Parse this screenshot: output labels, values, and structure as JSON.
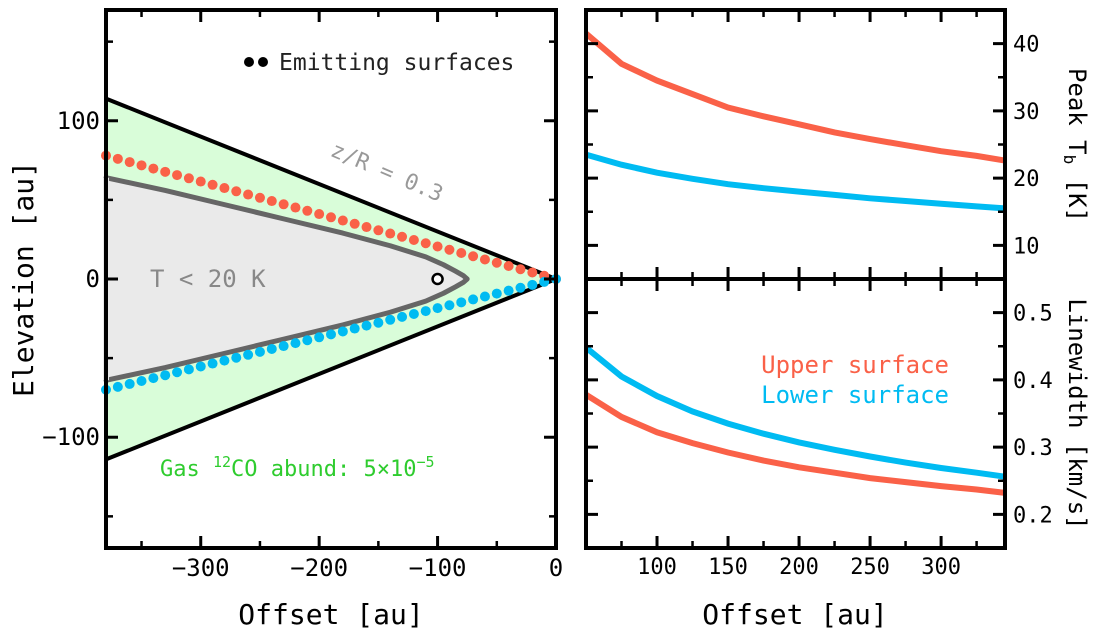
{
  "figure": {
    "left_panel": {
      "xlabel": "Offset [au]",
      "ylabel": "Elevation [au]",
      "legend_label": "Emitting surfaces",
      "zr_label": "z/R = 0.3",
      "temp_label": "T < 20 K",
      "abund_prefix": "Gas ",
      "abund_sup": "12",
      "abund_mid": "CO abund: 5×10",
      "abund_exp": "−5"
    },
    "right_top": {
      "ylabel_main": "Peak T",
      "ylabel_sub": "b",
      "ylabel_unit": " [K]"
    },
    "right_bottom": {
      "ylabel": "Linewidth [km/s]",
      "legend_upper": "Upper surface",
      "legend_lower": "Lower surface"
    },
    "right_xlabel": "Offset [au]"
  },
  "chart_data": [
    {
      "type": "scatter",
      "panel": "left",
      "title": "",
      "xlabel": "Offset [au]",
      "ylabel": "Elevation [au]",
      "xlim": [
        -380,
        0
      ],
      "ylim": [
        -170,
        170
      ],
      "xticks": [
        -300,
        -200,
        -100,
        0
      ],
      "xtick_labels": [
        "−300",
        "−200",
        "−100",
        "0"
      ],
      "yticks": [
        -100,
        0,
        100
      ],
      "ytick_labels": [
        "−100",
        "0",
        "100"
      ],
      "grid": false,
      "legend": {
        "placement": "top-right",
        "entries": [
          "Emitting surfaces"
        ]
      },
      "regions": [
        {
          "name": "gas CO (z/R = 0.3 wedge)",
          "color": "#d9fdd9",
          "edge_color": "#000000",
          "boundary_zr": 0.3
        },
        {
          "name": "T < 20 K",
          "color": "#eaeaea",
          "edge_color": "#666666",
          "tip_x": -75,
          "outer_upper_z": 64,
          "outer_lower_z": -64,
          "outer_x": -380
        }
      ],
      "series": [
        {
          "name": "upper",
          "color": "#fa6148",
          "x_range": [
            -380,
            0
          ],
          "z_at_-380": 78
        },
        {
          "name": "lower",
          "color": "#00bbf2",
          "x_range": [
            -380,
            0
          ],
          "z_at_-380": -70
        }
      ],
      "marker": {
        "x": -100,
        "y": 0,
        "style": "open-circle"
      },
      "annotations": [
        "z/R = 0.3",
        "T < 20 K",
        "Gas 12CO abund: 5×10−5"
      ]
    },
    {
      "type": "line",
      "panel": "right-top",
      "xlabel": "",
      "ylabel": "Peak Tb [K]",
      "xlim": [
        50,
        345
      ],
      "ylim": [
        5,
        45
      ],
      "yticks": [
        10,
        20,
        30,
        40
      ],
      "ytick_labels": [
        "10",
        "20",
        "30",
        "40"
      ],
      "series": [
        {
          "name": "Upper surface",
          "color": "#fa6148",
          "x": [
            50,
            75,
            100,
            125,
            150,
            175,
            200,
            225,
            250,
            275,
            300,
            325,
            345
          ],
          "y": [
            41.5,
            37.0,
            34.5,
            32.5,
            30.5,
            29.2,
            28.0,
            26.8,
            25.8,
            24.9,
            24.0,
            23.3,
            22.6
          ]
        },
        {
          "name": "Lower surface",
          "color": "#00bbf2",
          "x": [
            50,
            75,
            100,
            125,
            150,
            175,
            200,
            225,
            250,
            275,
            300,
            325,
            345
          ],
          "y": [
            23.5,
            22.0,
            20.8,
            19.9,
            19.1,
            18.5,
            18.0,
            17.5,
            17.0,
            16.6,
            16.2,
            15.8,
            15.5
          ]
        }
      ]
    },
    {
      "type": "line",
      "panel": "right-bottom",
      "xlabel": "Offset [au]",
      "ylabel": "Linewidth [km/s]",
      "xlim": [
        50,
        345
      ],
      "ylim": [
        0.15,
        0.55
      ],
      "xticks": [
        100,
        150,
        200,
        250,
        300
      ],
      "xtick_labels": [
        "100",
        "150",
        "200",
        "250",
        "300"
      ],
      "yticks": [
        0.2,
        0.3,
        0.4,
        0.5
      ],
      "ytick_labels": [
        "0.2",
        "0.3",
        "0.4",
        "0.5"
      ],
      "legend": {
        "placement": "upper-right",
        "entries": [
          "Upper surface",
          "Lower surface"
        ]
      },
      "series": [
        {
          "name": "Upper surface",
          "color": "#fa6148",
          "x": [
            50,
            75,
            100,
            125,
            150,
            175,
            200,
            225,
            250,
            275,
            300,
            325,
            345
          ],
          "y": [
            0.378,
            0.345,
            0.322,
            0.306,
            0.292,
            0.28,
            0.27,
            0.262,
            0.254,
            0.248,
            0.242,
            0.237,
            0.232
          ]
        },
        {
          "name": "Lower surface",
          "color": "#00bbf2",
          "x": [
            50,
            75,
            100,
            125,
            150,
            175,
            200,
            225,
            250,
            275,
            300,
            325,
            345
          ],
          "y": [
            0.448,
            0.405,
            0.376,
            0.353,
            0.335,
            0.32,
            0.307,
            0.296,
            0.286,
            0.277,
            0.269,
            0.262,
            0.256
          ]
        }
      ]
    }
  ]
}
